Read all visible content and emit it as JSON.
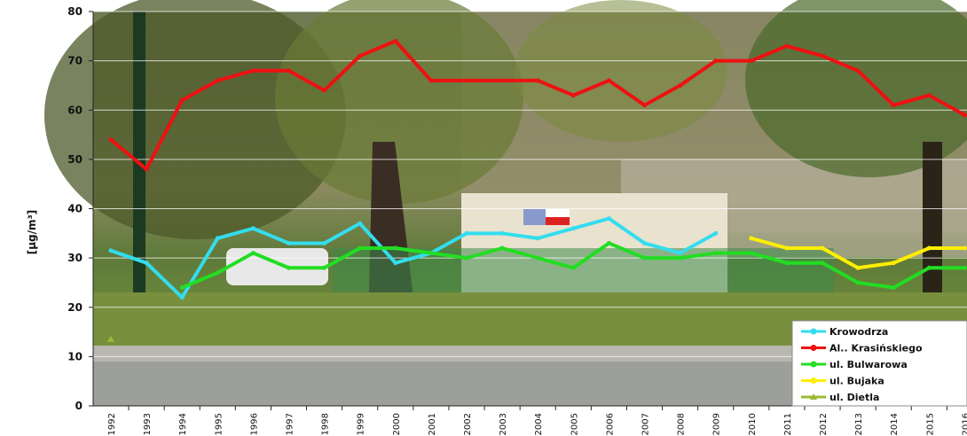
{
  "chart_data": {
    "type": "line",
    "title": "",
    "xlabel": "",
    "ylabel": "[µg/m³]",
    "ylim": [
      0,
      80
    ],
    "yticks": [
      "0",
      "10",
      "20",
      "30",
      "40",
      "50",
      "60",
      "70",
      "80"
    ],
    "grid": true,
    "legend_position": "bottom-right",
    "background": "photograph of a street with trees and a monitoring station",
    "x": [
      "1992",
      "1993",
      "1994",
      "1995",
      "1996",
      "1997",
      "1998",
      "1999",
      "2000",
      "2001",
      "2002",
      "2003",
      "2004",
      "2005",
      "2006",
      "2007",
      "2008",
      "2009",
      "2010",
      "2011",
      "2012",
      "2013",
      "2014",
      "2015",
      "2016"
    ],
    "series": [
      {
        "name": "Krowodrza",
        "color": "#33ddee",
        "values": [
          31.5,
          29,
          22,
          34,
          36,
          33,
          33,
          37,
          29,
          31,
          35,
          35,
          34,
          36,
          38,
          33,
          31,
          35,
          null,
          null,
          null,
          null,
          null,
          null,
          null
        ]
      },
      {
        "name": "Al.. Krasińskiego",
        "color": "#ee1111",
        "values": [
          54,
          48,
          62,
          66,
          68,
          68,
          64,
          71,
          74,
          66,
          66,
          66,
          66,
          63,
          66,
          61,
          65,
          70,
          70,
          73,
          71,
          68,
          61,
          63,
          59
        ]
      },
      {
        "name": "ul. Bulwarowa",
        "color": "#22dd22",
        "values": [
          null,
          null,
          24,
          27,
          31,
          28,
          28,
          32,
          32,
          31,
          30,
          32,
          30,
          28,
          33,
          30,
          30,
          31,
          31,
          29,
          29,
          25,
          24,
          28,
          28
        ]
      },
      {
        "name": "ul. Bujaka",
        "color": "#ffee00",
        "values": [
          null,
          null,
          null,
          null,
          null,
          null,
          null,
          null,
          null,
          null,
          null,
          null,
          null,
          null,
          null,
          null,
          null,
          null,
          34,
          32,
          32,
          28,
          29,
          32,
          32
        ]
      },
      {
        "name": "ul. Dietla",
        "color": "#99bb33",
        "values": [
          13.5,
          null,
          null,
          null,
          null,
          null,
          null,
          null,
          null,
          null,
          null,
          null,
          null,
          null,
          null,
          null,
          null,
          null,
          null,
          null,
          null,
          null,
          null,
          null,
          null
        ]
      }
    ]
  }
}
